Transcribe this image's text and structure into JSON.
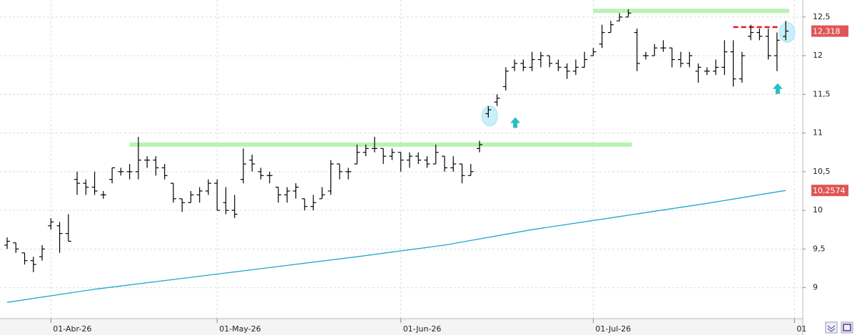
{
  "chart_data": {
    "type": "ohlc",
    "categories": [
      null,
      null,
      null,
      null,
      null,
      "01-Abr-26",
      null,
      null,
      null,
      null,
      null,
      null,
      null,
      null,
      null,
      null,
      null,
      null,
      null,
      null,
      null,
      null,
      null,
      null,
      "01-May-26",
      null,
      null,
      null,
      null,
      null,
      null,
      null,
      null,
      null,
      null,
      null,
      null,
      null,
      null,
      null,
      null,
      null,
      null,
      null,
      null,
      "01-Jun-26",
      null,
      null,
      null,
      null,
      null,
      null,
      null,
      null,
      null,
      null,
      null,
      null,
      null,
      null,
      null,
      null,
      null,
      null,
      null,
      null,
      null,
      "01-Jul-26",
      null,
      null,
      null,
      null,
      null,
      null,
      null,
      null,
      null,
      null,
      null,
      null,
      null,
      null,
      null,
      null,
      null,
      null,
      null,
      null,
      null,
      null,
      "01"
    ],
    "open": [
      9.55,
      9.58,
      9.45,
      9.35,
      9.4,
      9.8,
      9.8,
      9.7,
      10.4,
      10.35,
      10.3,
      10.2,
      10.4,
      10.5,
      10.5,
      10.5,
      10.65,
      10.65,
      10.55,
      10.35,
      10.15,
      10.1,
      10.2,
      10.25,
      10.35,
      10.1,
      10.0,
      10.4,
      10.65,
      10.5,
      10.45,
      10.3,
      10.2,
      10.25,
      10.15,
      10.05,
      10.15,
      10.25,
      10.6,
      10.5,
      10.6,
      10.75,
      10.8,
      10.8,
      10.7,
      10.75,
      10.65,
      10.7,
      10.65,
      10.6,
      10.7,
      10.55,
      10.6,
      10.45,
      10.8,
      11.25,
      11.4,
      11.6,
      11.85,
      11.9,
      11.85,
      11.95,
      12.0,
      11.9,
      11.85,
      11.8,
      11.85,
      12.0,
      12.15,
      12.3,
      12.45,
      12.5,
      12.3,
      12.0,
      12.0,
      12.1,
      12.1,
      11.95,
      11.9,
      11.8,
      11.8,
      11.8,
      11.85,
      12.05,
      11.7,
      12.25,
      12.3,
      12.25,
      12.0,
      12.25,
      null
    ],
    "high": [
      9.65,
      9.58,
      9.45,
      9.4,
      9.55,
      9.9,
      9.85,
      9.95,
      10.5,
      10.4,
      10.5,
      10.25,
      10.55,
      10.55,
      10.6,
      10.95,
      10.7,
      10.7,
      10.6,
      10.35,
      10.15,
      10.25,
      10.3,
      10.4,
      10.4,
      10.3,
      10.2,
      10.8,
      10.72,
      10.55,
      10.5,
      10.3,
      10.3,
      10.35,
      10.15,
      10.2,
      10.3,
      10.65,
      10.6,
      10.55,
      10.85,
      10.85,
      10.95,
      10.8,
      10.8,
      10.75,
      10.75,
      10.75,
      10.7,
      10.85,
      10.7,
      10.7,
      10.6,
      10.6,
      10.9,
      11.35,
      11.5,
      11.85,
      11.95,
      11.95,
      12.05,
      12.05,
      12.0,
      11.95,
      11.9,
      11.95,
      12.05,
      12.1,
      12.4,
      12.45,
      12.55,
      12.6,
      12.35,
      12.05,
      12.15,
      12.2,
      12.1,
      12.05,
      12.05,
      11.9,
      11.85,
      11.95,
      12.2,
      12.2,
      12.05,
      12.4,
      12.35,
      12.35,
      12.3,
      12.45,
      null
    ],
    "low": [
      9.5,
      9.45,
      9.3,
      9.2,
      9.35,
      9.75,
      9.45,
      9.6,
      10.2,
      10.2,
      10.2,
      10.15,
      10.35,
      10.45,
      10.4,
      10.4,
      10.55,
      10.45,
      10.4,
      10.1,
      9.98,
      10.1,
      10.1,
      10.2,
      10.0,
      9.95,
      9.9,
      10.35,
      10.5,
      10.4,
      10.35,
      10.1,
      10.1,
      10.15,
      10.0,
      10.0,
      10.15,
      10.2,
      10.4,
      10.4,
      10.6,
      10.7,
      10.75,
      10.6,
      10.65,
      10.5,
      10.55,
      10.6,
      10.55,
      10.6,
      10.5,
      10.5,
      10.35,
      10.45,
      10.75,
      11.2,
      11.35,
      11.55,
      11.8,
      11.8,
      11.8,
      11.85,
      11.85,
      11.8,
      11.7,
      11.75,
      11.85,
      12.0,
      12.1,
      12.3,
      12.45,
      12.5,
      11.8,
      11.95,
      12.0,
      12.05,
      11.85,
      11.85,
      11.85,
      11.65,
      11.75,
      11.75,
      11.75,
      11.6,
      11.65,
      12.2,
      12.2,
      11.95,
      11.8,
      12.2,
      null
    ],
    "close": [
      9.6,
      9.5,
      9.35,
      9.3,
      9.5,
      9.85,
      9.7,
      9.6,
      10.35,
      10.3,
      10.25,
      10.2,
      10.55,
      10.5,
      10.5,
      10.65,
      10.65,
      10.55,
      10.45,
      10.15,
      10.1,
      10.2,
      10.25,
      10.35,
      10.0,
      10.0,
      9.95,
      10.6,
      10.6,
      10.45,
      10.45,
      10.2,
      10.25,
      10.3,
      10.05,
      10.1,
      10.2,
      10.6,
      10.5,
      10.5,
      10.75,
      10.8,
      10.8,
      10.7,
      10.75,
      10.65,
      10.7,
      10.65,
      10.6,
      10.75,
      10.55,
      10.6,
      10.45,
      10.5,
      10.85,
      11.3,
      11.45,
      11.8,
      11.9,
      11.85,
      11.95,
      12.0,
      11.9,
      11.85,
      11.8,
      11.85,
      11.95,
      12.05,
      12.3,
      12.4,
      12.5,
      12.55,
      11.9,
      12.0,
      12.1,
      12.1,
      11.95,
      11.9,
      12.0,
      11.85,
      11.8,
      11.85,
      12.05,
      11.7,
      12.0,
      12.3,
      12.25,
      12.0,
      12.2,
      12.318,
      null
    ],
    "color": "#000000",
    "moving_average": {
      "x": [
        0,
        10,
        20,
        30,
        40,
        50,
        60,
        70,
        80,
        89
      ],
      "values": [
        8.81,
        8.98,
        9.12,
        9.26,
        9.4,
        9.55,
        9.75,
        9.92,
        10.09,
        10.2574
      ],
      "color": "#1fa7c9",
      "value_label": "10,2574"
    },
    "last_price": {
      "value": 12.318,
      "label": "12,318"
    },
    "levels": [
      {
        "value": 10.85,
        "from": 14,
        "to": 71,
        "color": "#b9f3b2"
      },
      {
        "value": 12.58,
        "from": 67,
        "to": 89,
        "color": "#b9f3b2"
      },
      {
        "value": 12.37,
        "from": 83,
        "to": 89,
        "color": "#e3151a",
        "dashed": true
      }
    ],
    "circles": [
      {
        "x": 55,
        "value": 11.22
      },
      {
        "x": 89,
        "value": 12.3
      }
    ],
    "arrows": [
      {
        "x": 58,
        "value": 11.13
      },
      {
        "x": 88,
        "value": 11.57
      }
    ],
    "ylim": [
      8.6,
      12.72
    ],
    "yticks": [
      {
        "value": 9,
        "label": "9"
      },
      {
        "value": 9.5,
        "label": "9,5"
      },
      {
        "value": 10,
        "label": "10"
      },
      {
        "value": 10.5,
        "label": "10,5"
      },
      {
        "value": 11,
        "label": "11"
      },
      {
        "value": 11.5,
        "label": "11,5"
      },
      {
        "value": 12,
        "label": "12"
      },
      {
        "value": 12.5,
        "label": "12,5"
      }
    ],
    "grid": true
  }
}
